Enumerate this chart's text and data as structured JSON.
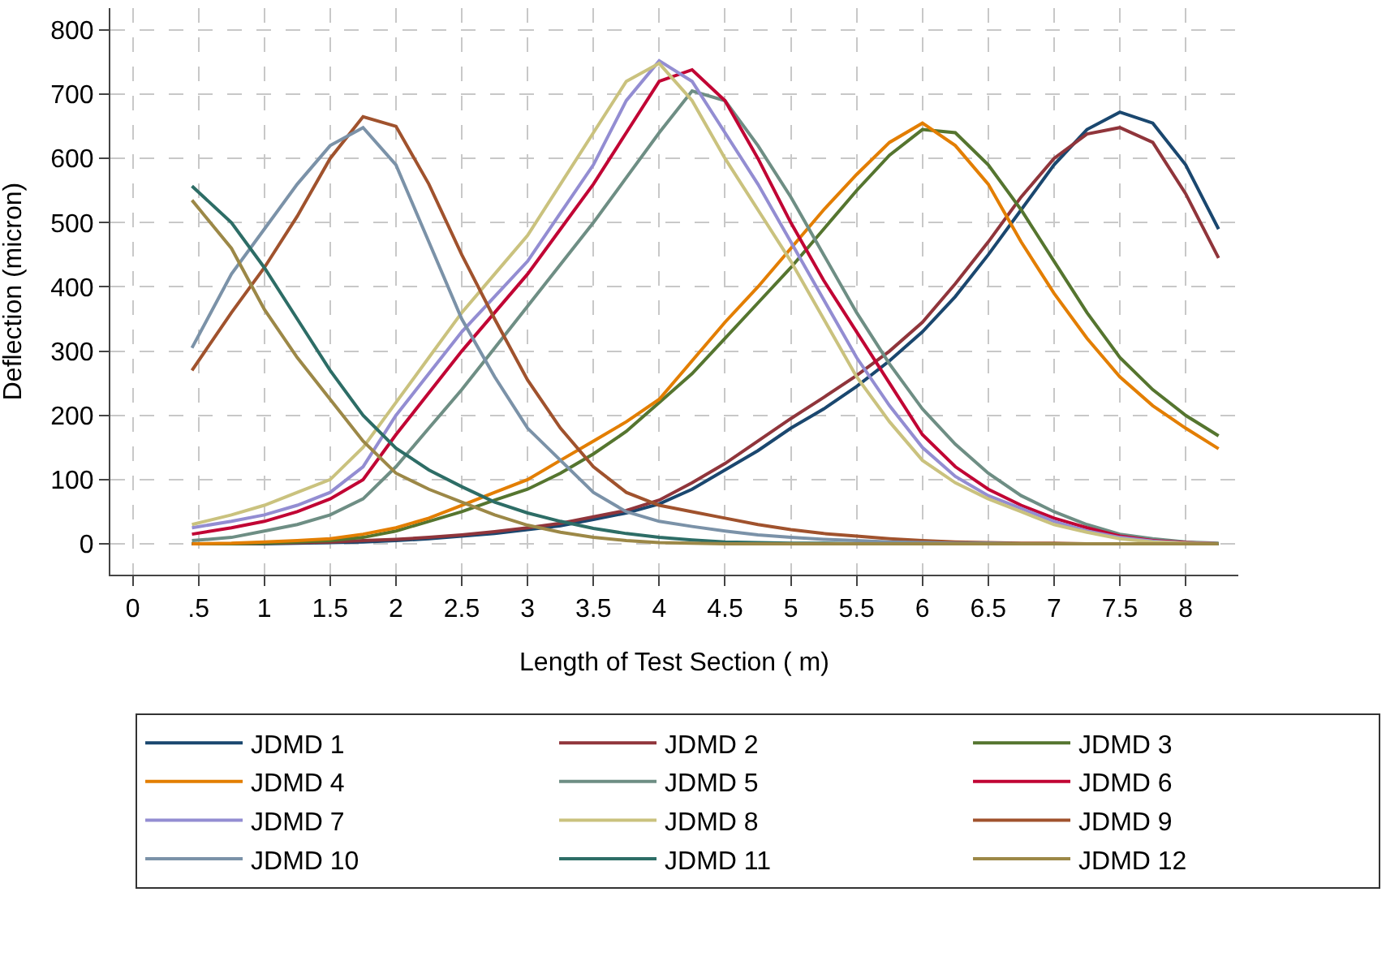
{
  "chart_data": {
    "type": "line",
    "xlabel": "Length of Test Section ( m)",
    "ylabel": "Deflection (micron)",
    "x": [
      0.45,
      0.75,
      1,
      1.25,
      1.5,
      1.75,
      2,
      2.25,
      2.5,
      2.75,
      3,
      3.25,
      3.5,
      3.75,
      4,
      4.25,
      4.5,
      4.75,
      5,
      5.25,
      5.5,
      5.75,
      6,
      6.25,
      6.5,
      6.75,
      7,
      7.25,
      7.5,
      7.75,
      8,
      8.25
    ],
    "xlim": [
      -0.17,
      8.4
    ],
    "ylim": [
      -48,
      834
    ],
    "xticks": [
      0,
      {
        "value": 0.5,
        "label": ".5"
      },
      1,
      1.5,
      2,
      2.5,
      3,
      3.5,
      4,
      4.5,
      5,
      5.5,
      6,
      6.5,
      7,
      7.5,
      8
    ],
    "yticks": [
      0,
      100,
      200,
      300,
      400,
      500,
      600,
      700,
      800
    ],
    "grid": true,
    "legend": "bottom",
    "marker": "none",
    "line_style": "solid",
    "series": [
      {
        "name": "JDMD 1",
        "color": "#1a476f",
        "values": [
          0,
          0,
          0,
          1,
          2,
          3,
          5,
          8,
          12,
          16,
          22,
          28,
          38,
          48,
          62,
          85,
          115,
          145,
          180,
          210,
          245,
          285,
          330,
          385,
          450,
          520,
          590,
          645,
          672,
          655,
          590,
          490
        ]
      },
      {
        "name": "JDMD 2",
        "color": "#90353b",
        "values": [
          0,
          0,
          1,
          2,
          3,
          5,
          7,
          10,
          14,
          19,
          25,
          32,
          42,
          52,
          68,
          95,
          125,
          160,
          195,
          228,
          262,
          300,
          345,
          405,
          470,
          540,
          600,
          638,
          648,
          625,
          545,
          445
        ]
      },
      {
        "name": "JDMD 3",
        "color": "#55752f",
        "values": [
          0,
          0,
          1,
          3,
          5,
          10,
          20,
          35,
          50,
          68,
          85,
          110,
          140,
          175,
          220,
          265,
          320,
          375,
          430,
          490,
          550,
          605,
          645,
          640,
          590,
          520,
          440,
          360,
          290,
          240,
          200,
          168
        ]
      },
      {
        "name": "JDMD 4",
        "color": "#e37e00",
        "values": [
          0,
          1,
          3,
          5,
          8,
          15,
          25,
          40,
          60,
          80,
          100,
          130,
          160,
          190,
          225,
          285,
          345,
          400,
          460,
          520,
          575,
          625,
          655,
          620,
          560,
          470,
          390,
          320,
          260,
          215,
          180,
          148
        ]
      },
      {
        "name": "JDMD 5",
        "color": "#6e8e84",
        "values": [
          5,
          10,
          20,
          30,
          45,
          70,
          120,
          180,
          240,
          305,
          370,
          435,
          500,
          570,
          640,
          705,
          690,
          620,
          540,
          450,
          360,
          280,
          210,
          155,
          110,
          75,
          50,
          30,
          15,
          8,
          3,
          1
        ]
      },
      {
        "name": "JDMD 6",
        "color": "#c10534",
        "values": [
          15,
          25,
          35,
          50,
          70,
          100,
          170,
          235,
          300,
          360,
          420,
          490,
          560,
          640,
          720,
          738,
          690,
          600,
          500,
          410,
          330,
          250,
          170,
          120,
          85,
          60,
          40,
          25,
          12,
          5,
          2,
          0
        ]
      },
      {
        "name": "JDMD 7",
        "color": "#938dd2",
        "values": [
          25,
          35,
          45,
          60,
          80,
          120,
          200,
          265,
          330,
          385,
          440,
          515,
          590,
          690,
          752,
          720,
          640,
          560,
          470,
          380,
          290,
          215,
          150,
          105,
          75,
          55,
          35,
          20,
          10,
          4,
          1,
          0
        ]
      },
      {
        "name": "JDMD 8",
        "color": "#cac27e",
        "values": [
          30,
          45,
          60,
          80,
          100,
          150,
          220,
          290,
          360,
          420,
          480,
          560,
          640,
          720,
          748,
          690,
          600,
          520,
          440,
          350,
          260,
          190,
          130,
          95,
          70,
          50,
          30,
          18,
          8,
          3,
          1,
          0
        ]
      },
      {
        "name": "JDMD 9",
        "color": "#a0522d",
        "values": [
          270,
          360,
          430,
          510,
          600,
          665,
          650,
          560,
          450,
          350,
          255,
          180,
          120,
          80,
          60,
          50,
          40,
          30,
          22,
          16,
          12,
          8,
          5,
          3,
          2,
          1,
          1,
          0,
          0,
          0,
          0,
          0
        ]
      },
      {
        "name": "JDMD 10",
        "color": "#7b92a8",
        "values": [
          305,
          420,
          490,
          560,
          620,
          648,
          590,
          470,
          350,
          260,
          180,
          130,
          80,
          50,
          35,
          27,
          20,
          14,
          10,
          7,
          5,
          3,
          2,
          1,
          1,
          0,
          0,
          0,
          0,
          0,
          0,
          0
        ]
      },
      {
        "name": "JDMD 11",
        "color": "#2d6d66",
        "values": [
          557,
          500,
          430,
          350,
          270,
          200,
          149,
          115,
          89,
          65,
          48,
          35,
          24,
          16,
          10,
          6,
          3,
          2,
          1,
          1,
          0,
          0,
          0,
          0,
          0,
          0,
          0,
          0,
          0,
          0,
          0,
          0
        ]
      },
      {
        "name": "JDMD 12",
        "color": "#9c8847",
        "values": [
          535,
          460,
          365,
          290,
          225,
          160,
          110,
          85,
          65,
          45,
          29,
          18,
          10,
          5,
          2,
          1,
          0,
          0,
          0,
          0,
          0,
          0,
          0,
          0,
          0,
          0,
          0,
          0,
          0,
          0,
          0,
          0
        ]
      }
    ]
  }
}
